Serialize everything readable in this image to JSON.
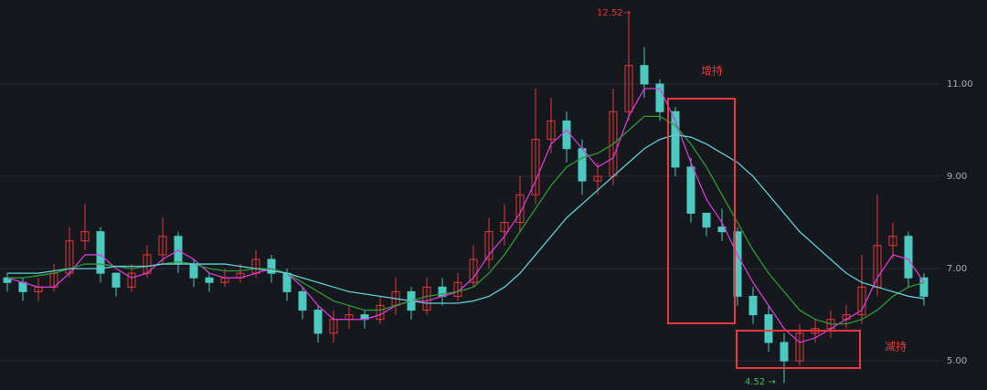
{
  "chart_data": {
    "type": "candlestick",
    "open": [
      6.8,
      6.7,
      6.5,
      6.6,
      6.9,
      7.6,
      7.8,
      6.9,
      6.6,
      6.9,
      7.3,
      7.7,
      7.1,
      6.8,
      6.7,
      6.8,
      6.9,
      7.2,
      6.9,
      6.5,
      6.1,
      5.6,
      5.9,
      6.0,
      5.9,
      6.2,
      6.5,
      6.1,
      6.6,
      6.4,
      6.7,
      7.2,
      7.8,
      8.0,
      8.6,
      9.8,
      10.2,
      9.6,
      8.9,
      9.0,
      10.4,
      11.4,
      11.0,
      10.4,
      9.2,
      8.2,
      7.9,
      7.8,
      6.4,
      6.0,
      5.4,
      5.0,
      5.6,
      5.7,
      5.9,
      6.0,
      6.6,
      7.5,
      7.7,
      6.8
    ],
    "high": [
      6.9,
      6.8,
      6.8,
      7.1,
      7.9,
      8.4,
      7.9,
      6.9,
      7.1,
      7.5,
      8.1,
      7.8,
      7.2,
      6.9,
      7.0,
      7.1,
      7.4,
      7.3,
      7.0,
      6.6,
      6.2,
      6.1,
      6.2,
      6.1,
      6.4,
      6.8,
      6.6,
      6.8,
      6.8,
      6.9,
      7.5,
      8.1,
      8.4,
      9.0,
      10.9,
      10.7,
      10.4,
      9.8,
      9.3,
      10.9,
      12.52,
      11.8,
      11.1,
      10.5,
      9.4,
      8.2,
      8.3,
      7.9,
      6.6,
      6.2,
      5.6,
      5.8,
      5.9,
      6.1,
      6.2,
      7.3,
      8.6,
      8.0,
      7.8,
      6.9
    ],
    "low": [
      6.5,
      6.3,
      6.3,
      6.5,
      6.8,
      7.4,
      6.7,
      6.4,
      6.5,
      6.8,
      7.1,
      6.9,
      6.6,
      6.5,
      6.6,
      6.7,
      6.8,
      6.7,
      6.3,
      5.9,
      5.4,
      5.4,
      5.7,
      5.7,
      5.8,
      6.0,
      5.9,
      6.0,
      6.2,
      6.3,
      6.6,
      7.0,
      7.5,
      7.8,
      8.4,
      9.5,
      9.3,
      8.6,
      8.6,
      8.8,
      10.2,
      10.7,
      10.2,
      9.0,
      8.0,
      7.7,
      7.6,
      6.2,
      5.8,
      5.2,
      4.52,
      4.9,
      5.4,
      5.5,
      5.7,
      5.8,
      6.4,
      7.2,
      6.6,
      6.2
    ],
    "close": [
      6.7,
      6.5,
      6.6,
      6.9,
      7.6,
      7.8,
      6.9,
      6.6,
      6.9,
      7.3,
      7.7,
      7.1,
      6.8,
      6.7,
      6.8,
      6.9,
      7.2,
      6.9,
      6.5,
      6.1,
      5.6,
      5.9,
      6.0,
      5.9,
      6.2,
      6.5,
      6.1,
      6.6,
      6.4,
      6.7,
      7.2,
      7.8,
      8.0,
      8.6,
      9.8,
      10.2,
      9.6,
      8.9,
      9.0,
      10.4,
      11.4,
      11.0,
      10.4,
      9.2,
      8.2,
      7.9,
      7.8,
      6.4,
      6.0,
      5.4,
      5.0,
      5.6,
      5.7,
      5.9,
      6.0,
      6.6,
      7.5,
      7.7,
      6.8,
      6.4
    ],
    "up_color": "#e8383d",
    "down_color": "#4cc9c0",
    "series": [
      {
        "color": "#d63bd6",
        "values": [
          6.8,
          6.7,
          6.6,
          6.6,
          6.9,
          7.3,
          7.3,
          7.0,
          6.8,
          6.9,
          7.2,
          7.4,
          7.2,
          6.9,
          6.8,
          6.8,
          6.9,
          7.0,
          6.9,
          6.6,
          6.2,
          5.9,
          5.9,
          5.9,
          6.0,
          6.2,
          6.3,
          6.3,
          6.4,
          6.5,
          6.8,
          7.3,
          7.7,
          8.2,
          8.9,
          9.7,
          10.0,
          9.6,
          9.2,
          9.4,
          10.3,
          10.9,
          10.9,
          10.2,
          9.3,
          8.5,
          8.0,
          7.3,
          6.7,
          6.2,
          5.7,
          5.4,
          5.5,
          5.7,
          5.9,
          6.1,
          6.8,
          7.3,
          7.2,
          6.7
        ]
      },
      {
        "color": "#2f9a3a",
        "values": [
          6.8,
          6.8,
          6.85,
          6.9,
          7.0,
          7.1,
          7.1,
          7.05,
          7.0,
          7.05,
          7.1,
          7.15,
          7.1,
          7.0,
          6.95,
          6.95,
          7.0,
          7.0,
          6.9,
          6.7,
          6.5,
          6.3,
          6.2,
          6.1,
          6.1,
          6.2,
          6.3,
          6.4,
          6.45,
          6.5,
          6.6,
          6.9,
          7.3,
          7.8,
          8.3,
          8.8,
          9.2,
          9.4,
          9.5,
          9.7,
          10.0,
          10.3,
          10.3,
          10.1,
          9.7,
          9.2,
          8.6,
          8.0,
          7.4,
          6.9,
          6.5,
          6.1,
          5.9,
          5.8,
          5.8,
          5.9,
          6.1,
          6.4,
          6.6,
          6.7
        ]
      },
      {
        "color": "#5fd0d8",
        "values": [
          6.9,
          6.9,
          6.9,
          6.95,
          7.0,
          7.0,
          7.0,
          7.05,
          7.05,
          7.05,
          7.1,
          7.1,
          7.1,
          7.1,
          7.1,
          7.05,
          7.0,
          6.95,
          6.9,
          6.8,
          6.7,
          6.6,
          6.5,
          6.45,
          6.4,
          6.35,
          6.3,
          6.25,
          6.25,
          6.25,
          6.3,
          6.4,
          6.6,
          6.9,
          7.3,
          7.7,
          8.1,
          8.4,
          8.7,
          9.0,
          9.3,
          9.6,
          9.8,
          9.9,
          9.85,
          9.7,
          9.5,
          9.3,
          9.0,
          8.6,
          8.2,
          7.8,
          7.5,
          7.2,
          6.9,
          6.7,
          6.6,
          6.5,
          6.4,
          6.35
        ]
      }
    ],
    "ylim": [
      4.37,
      12.82
    ],
    "yticks": [
      {
        "value": 5,
        "label": "5.00"
      },
      {
        "value": 7,
        "label": "7.00"
      },
      {
        "value": 9,
        "label": "9.00"
      },
      {
        "value": 11,
        "label": "11.00"
      }
    ],
    "grid": true,
    "annotations": [
      "12.52→",
      "4.52 →",
      "增持",
      "减持"
    ]
  }
}
